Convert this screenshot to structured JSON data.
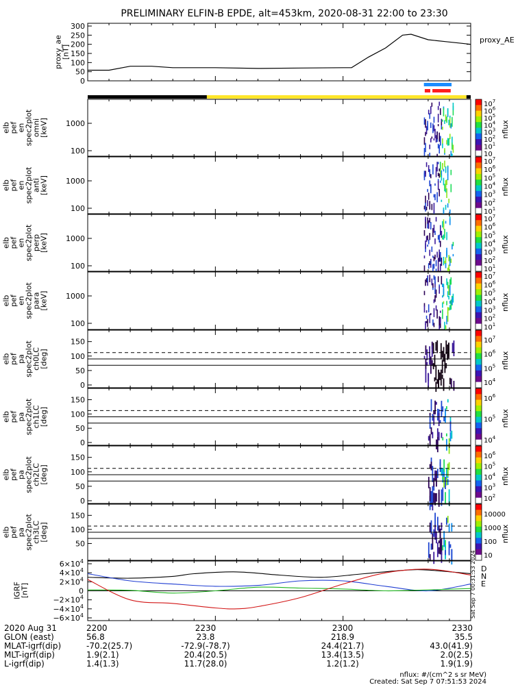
{
  "title": "PRELIMINARY ELFIN-B EPDE, alt=453km, 2020-08-31 22:00 to 23:30",
  "colors": {
    "ae_line": "#000000",
    "bar_black": "#000000",
    "bar_yellow": "#ffe62a",
    "bar_blue": "#1a8cff",
    "bar_red": "#ff1e1e",
    "grf_d": "#d21414",
    "grf_n": "#1e3cd2",
    "grf_e": "#1eb41e",
    "grf_total": "#000000"
  },
  "chart_data": [
    {
      "type": "line",
      "name": "proxy_ae",
      "ylabel": "proxy_ae [nT]",
      "legend": "proxy_AE",
      "ylim": [
        0,
        300
      ],
      "yticks": [
        "300",
        "250",
        "200",
        "150",
        "100",
        "50",
        "0"
      ],
      "yticks_values": [
        300,
        250,
        200,
        150,
        100,
        50,
        0
      ],
      "x": [
        0,
        5,
        10,
        15,
        20,
        30,
        40,
        50,
        60,
        62,
        66,
        70,
        74,
        76,
        80,
        84,
        88,
        90
      ],
      "y": [
        58,
        58,
        80,
        80,
        72,
        72,
        68,
        70,
        72,
        72,
        130,
        180,
        250,
        255,
        225,
        215,
        205,
        200
      ],
      "xlim": [
        0,
        90
      ]
    },
    {
      "type": "bar",
      "name": "status_bars",
      "segments": [
        {
          "label": "black",
          "start": 0,
          "end": 28
        },
        {
          "label": "yellow",
          "start": 28,
          "end": 89
        },
        {
          "label": "black",
          "start": 89,
          "end": 90
        }
      ],
      "blue_bars": [
        {
          "start": 79,
          "end": 85.5
        }
      ],
      "red_bars": [
        {
          "start": 79.2,
          "end": 80.5
        },
        {
          "start": 81,
          "end": 85.3
        }
      ]
    },
    {
      "type": "heatmap",
      "name": "elb_pef_en_omni",
      "ylabel_lines": [
        "elb",
        "pef",
        "en",
        "spec2plot",
        "omni",
        "[keV]"
      ],
      "yscale": "log",
      "yticks": [
        "1000",
        "100"
      ],
      "colorbar_label": "nflux",
      "colorbar_ticks": [
        "10",
        "10",
        "10",
        "10",
        "10",
        "10",
        "10",
        "10"
      ],
      "colorbar_exps": [
        "7",
        "6",
        "5",
        "4",
        "3",
        "2",
        "1",
        ""
      ],
      "data_window": [
        79,
        86
      ]
    },
    {
      "type": "heatmap",
      "name": "elb_pef_en_anti",
      "ylabel_lines": [
        "elb",
        "pef",
        "en",
        "spec2plot",
        "anti",
        "[keV]"
      ],
      "yscale": "log",
      "yticks": [
        "1000",
        "100"
      ],
      "colorbar_label": "nflux",
      "colorbar_ticks": [
        "10",
        "10",
        "10",
        "10",
        "10",
        "10",
        "10"
      ],
      "colorbar_exps": [
        "7",
        "6",
        "5",
        "4",
        "3",
        "2",
        "1"
      ],
      "data_window": [
        79,
        85.5
      ]
    },
    {
      "type": "heatmap",
      "name": "elb_pef_en_perp",
      "ylabel_lines": [
        "elb",
        "pef",
        "en",
        "spec2plot",
        "perp",
        "[keV]"
      ],
      "yscale": "log",
      "yticks": [
        "1000",
        "100"
      ],
      "colorbar_label": "nflux",
      "colorbar_ticks": [
        "10",
        "10",
        "10",
        "10",
        "10",
        "10",
        "10"
      ],
      "colorbar_exps": [
        "7",
        "6",
        "5",
        "4",
        "3",
        "2",
        "1"
      ],
      "data_window": [
        79,
        86
      ]
    },
    {
      "type": "heatmap",
      "name": "elb_pef_en_para",
      "ylabel_lines": [
        "elb",
        "pef",
        "en",
        "spec2plot",
        "para",
        "[keV]"
      ],
      "yscale": "log",
      "yticks": [
        "1000",
        "100"
      ],
      "colorbar_label": "nflux",
      "colorbar_ticks": [
        "10",
        "10",
        "10",
        "10",
        "10",
        "10",
        "10"
      ],
      "colorbar_exps": [
        "7",
        "6",
        "5",
        "4",
        "3",
        "2",
        "1"
      ],
      "data_window": [
        79,
        86
      ]
    },
    {
      "type": "heatmap",
      "name": "elb_pef_pa_ch0LC",
      "ylabel_lines": [
        "elb",
        "pef",
        "pa",
        "spec2plot",
        "ch0LC",
        "[deg]"
      ],
      "ylim": [
        0,
        180
      ],
      "yticks": [
        "150",
        "100",
        "50",
        "0"
      ],
      "yticks_values": [
        150,
        100,
        50,
        0
      ],
      "solid_lines": [
        90,
        68
      ],
      "dashed_lines": [
        112
      ],
      "colorbar_label": "nflux",
      "colorbar_ticks": [
        "10",
        "10",
        "10",
        "10"
      ],
      "colorbar_exps": [
        "7",
        "6",
        "5",
        "4"
      ],
      "data_window": [
        79,
        86
      ]
    },
    {
      "type": "heatmap",
      "name": "elb_pef_pa_ch1LC",
      "ylabel_lines": [
        "elb",
        "pef",
        "pa",
        "spec2plot",
        "ch1LC",
        "[deg]"
      ],
      "ylim": [
        0,
        180
      ],
      "yticks": [
        "150",
        "100",
        "50",
        "0"
      ],
      "yticks_values": [
        150,
        100,
        50,
        0
      ],
      "solid_lines": [
        90,
        68
      ],
      "dashed_lines": [
        112
      ],
      "colorbar_label": "nflux",
      "colorbar_ticks": [
        "10",
        "10",
        "10"
      ],
      "colorbar_exps": [
        "6",
        "5",
        "4"
      ],
      "data_window": [
        80,
        85.5
      ]
    },
    {
      "type": "heatmap",
      "name": "elb_pef_pa_ch2LC",
      "ylabel_lines": [
        "elb",
        "pef",
        "pa",
        "spec2plot",
        "ch2LC",
        "[deg]"
      ],
      "ylim": [
        0,
        180
      ],
      "yticks": [
        "150",
        "100",
        "50",
        "0"
      ],
      "yticks_values": [
        150,
        100,
        50,
        0
      ],
      "solid_lines": [
        90,
        68
      ],
      "dashed_lines": [
        112
      ],
      "colorbar_label": "nflux",
      "colorbar_ticks": [
        "10",
        "10",
        "10",
        "10",
        "10"
      ],
      "colorbar_exps": [
        "6",
        "5",
        "4",
        "3",
        "2"
      ],
      "data_window": [
        80,
        85
      ]
    },
    {
      "type": "heatmap",
      "name": "elb_pef_pa_ch3LC",
      "ylabel_lines": [
        "elb",
        "pef",
        "pa",
        "spec2plot",
        "ch3LC",
        "[deg]"
      ],
      "ylim": [
        0,
        180
      ],
      "yticks": [
        "150",
        "100",
        "50"
      ],
      "yticks_values": [
        150,
        100,
        50
      ],
      "solid_lines": [
        90,
        68
      ],
      "dashed_lines": [
        112
      ],
      "colorbar_label": "nflux",
      "colorbar_ticks": [
        "10000",
        "1000",
        "100",
        "10"
      ],
      "data_window": [
        80,
        85.5
      ]
    },
    {
      "type": "line",
      "name": "igrf",
      "ylabel": "IGRF [nT]",
      "ylim": [
        -60000,
        60000
      ],
      "yticks": [
        "6×10",
        "4×10",
        "2×10",
        "0",
        "−2×10",
        "−4×10",
        "−6×10"
      ],
      "yticks_exps": [
        "4",
        "4",
        "4",
        "",
        "4",
        "4",
        "4"
      ],
      "yticks_values": [
        60000,
        40000,
        20000,
        0,
        -20000,
        -40000,
        -60000
      ],
      "legend": [
        "D",
        "N",
        "E"
      ],
      "side_stamp": "Sat Sep  7 00:31:53 2024",
      "series": [
        {
          "name": "total",
          "x": [
            0,
            10,
            20,
            25,
            35,
            45,
            55,
            65,
            75,
            80,
            90
          ],
          "y": [
            30000,
            28000,
            32000,
            38000,
            42000,
            35000,
            30000,
            38000,
            46000,
            46000,
            38000
          ]
        },
        {
          "name": "N",
          "x": [
            0,
            10,
            20,
            30,
            40,
            50,
            60,
            70,
            80,
            90
          ],
          "y": [
            38000,
            22000,
            15000,
            10000,
            12000,
            22000,
            22000,
            10000,
            0,
            15000
          ]
        },
        {
          "name": "E",
          "x": [
            0,
            10,
            20,
            30,
            40,
            50,
            60,
            70,
            80,
            90
          ],
          "y": [
            2000,
            1000,
            -5000,
            0,
            8000,
            6000,
            4000,
            0,
            2000,
            5000
          ]
        },
        {
          "name": "D",
          "x": [
            0,
            10,
            20,
            30,
            35,
            40,
            50,
            60,
            70,
            80,
            90
          ],
          "y": [
            25000,
            -20000,
            -28000,
            -38000,
            -40000,
            -35000,
            -15000,
            15000,
            40000,
            48000,
            35000
          ]
        }
      ]
    }
  ],
  "time_axis": {
    "ticks": [
      "2200",
      "2230",
      "2300",
      "2330"
    ],
    "tick_values": [
      0,
      30,
      60,
      90
    ],
    "minor_step": 5
  },
  "footer": {
    "rows": [
      {
        "label": "2020 Aug 31",
        "values": [
          "2200",
          "2230",
          "2300",
          "2330"
        ]
      },
      {
        "label": "GLON (east)",
        "values": [
          "56.8",
          "23.8",
          "218.9",
          "35.5"
        ]
      },
      {
        "label": "MLAT-igrf(dip)",
        "values": [
          "-70.2(25.7)",
          "-72.9(-78.7)",
          "24.4(21.7)",
          "43.0(41.9)"
        ]
      },
      {
        "label": "MLT-igrf(dip)",
        "values": [
          "1.9(2.1)",
          "20.4(20.5)",
          "13.4(13.5)",
          "2.0(2.5)"
        ]
      },
      {
        "label": "L-igrf(dip)",
        "values": [
          "1.4(1.3)",
          "11.7(28.0)",
          "1.2(1.2)",
          "1.9(1.9)"
        ]
      }
    ],
    "nflux_units": "nflux: #/(cm^2 s sr MeV)",
    "created": "Created: Sat Sep  7 07:51:53 2024"
  }
}
